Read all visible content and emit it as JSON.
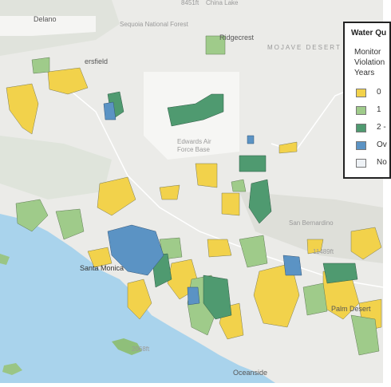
{
  "map": {
    "places": [
      "Delano",
      "China Lake",
      "Ridgecrest",
      "ersfield",
      "Edwards Air",
      "Force Base",
      "Santa Monica",
      "Oceanside",
      "Palm Desert",
      "MOJAVE DESERT",
      "Sequoia National Forest",
      "San Bernardino"
    ],
    "elevations": [
      "8451ft",
      "11489ft",
      "2068ft"
    ]
  },
  "legend": {
    "title": "Water Qu",
    "subtitle": [
      "Monitor",
      "Violation",
      "Years"
    ],
    "items": [
      "0",
      "1",
      "2 -",
      "Ov",
      "No"
    ]
  }
}
